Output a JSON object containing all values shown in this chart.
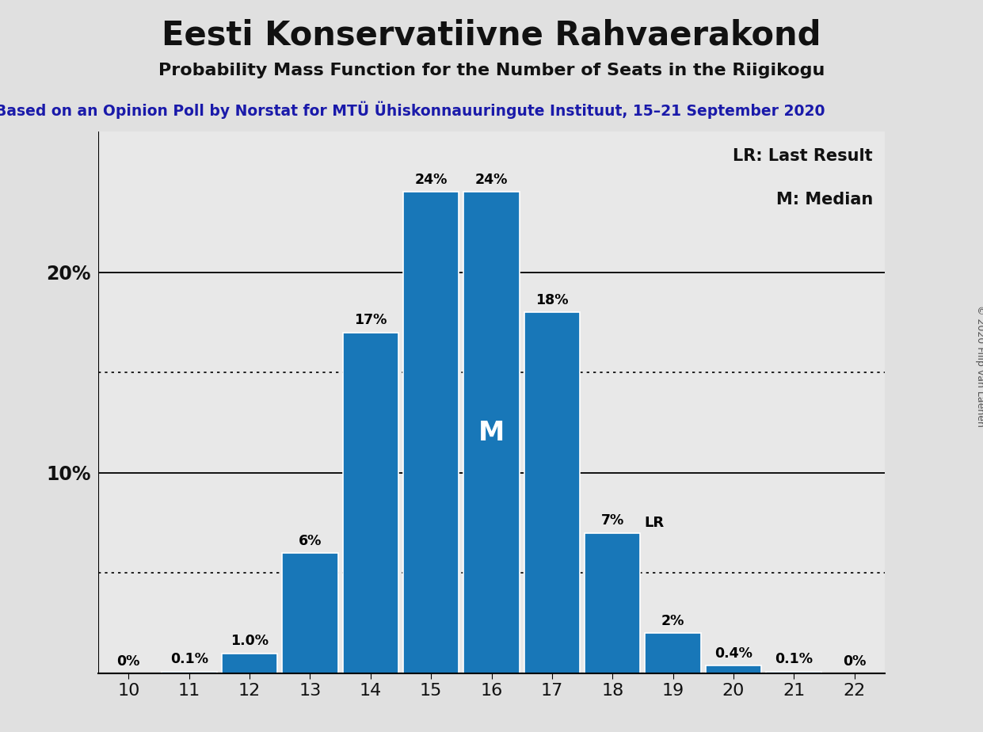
{
  "title": "Eesti Konservatiivne Rahvaerakond",
  "subtitle": "Probability Mass Function for the Number of Seats in the Riigikogu",
  "source_line": "Based on an Opinion Poll by Norstat for MTÜ Ühiskonnauuringute Instituut, 15–21 September 2020",
  "copyright": "© 2020 Filip van Laenen",
  "seats": [
    10,
    11,
    12,
    13,
    14,
    15,
    16,
    17,
    18,
    19,
    20,
    21,
    22
  ],
  "probabilities": [
    0.0,
    0.1,
    1.0,
    6.0,
    17.0,
    24.0,
    24.0,
    18.0,
    7.0,
    2.0,
    0.4,
    0.1,
    0.0
  ],
  "labels": [
    "0%",
    "0.1%",
    "1.0%",
    "6%",
    "17%",
    "24%",
    "24%",
    "18%",
    "7%",
    "2%",
    "0.4%",
    "0.1%",
    "0%"
  ],
  "bar_color": "#1877B8",
  "median_seat": 16,
  "last_result_seat": 18,
  "background_color": "#E0E0E0",
  "plot_background": "#E8E8E8",
  "solid_line_values": [
    10.0,
    20.0
  ],
  "dotted_line_values": [
    5.0,
    15.0
  ],
  "xlim": [
    9.5,
    22.5
  ],
  "ylim": [
    0,
    27
  ],
  "legend_lr": "LR: Last Result",
  "legend_m": "M: Median",
  "border_color": "#111111"
}
